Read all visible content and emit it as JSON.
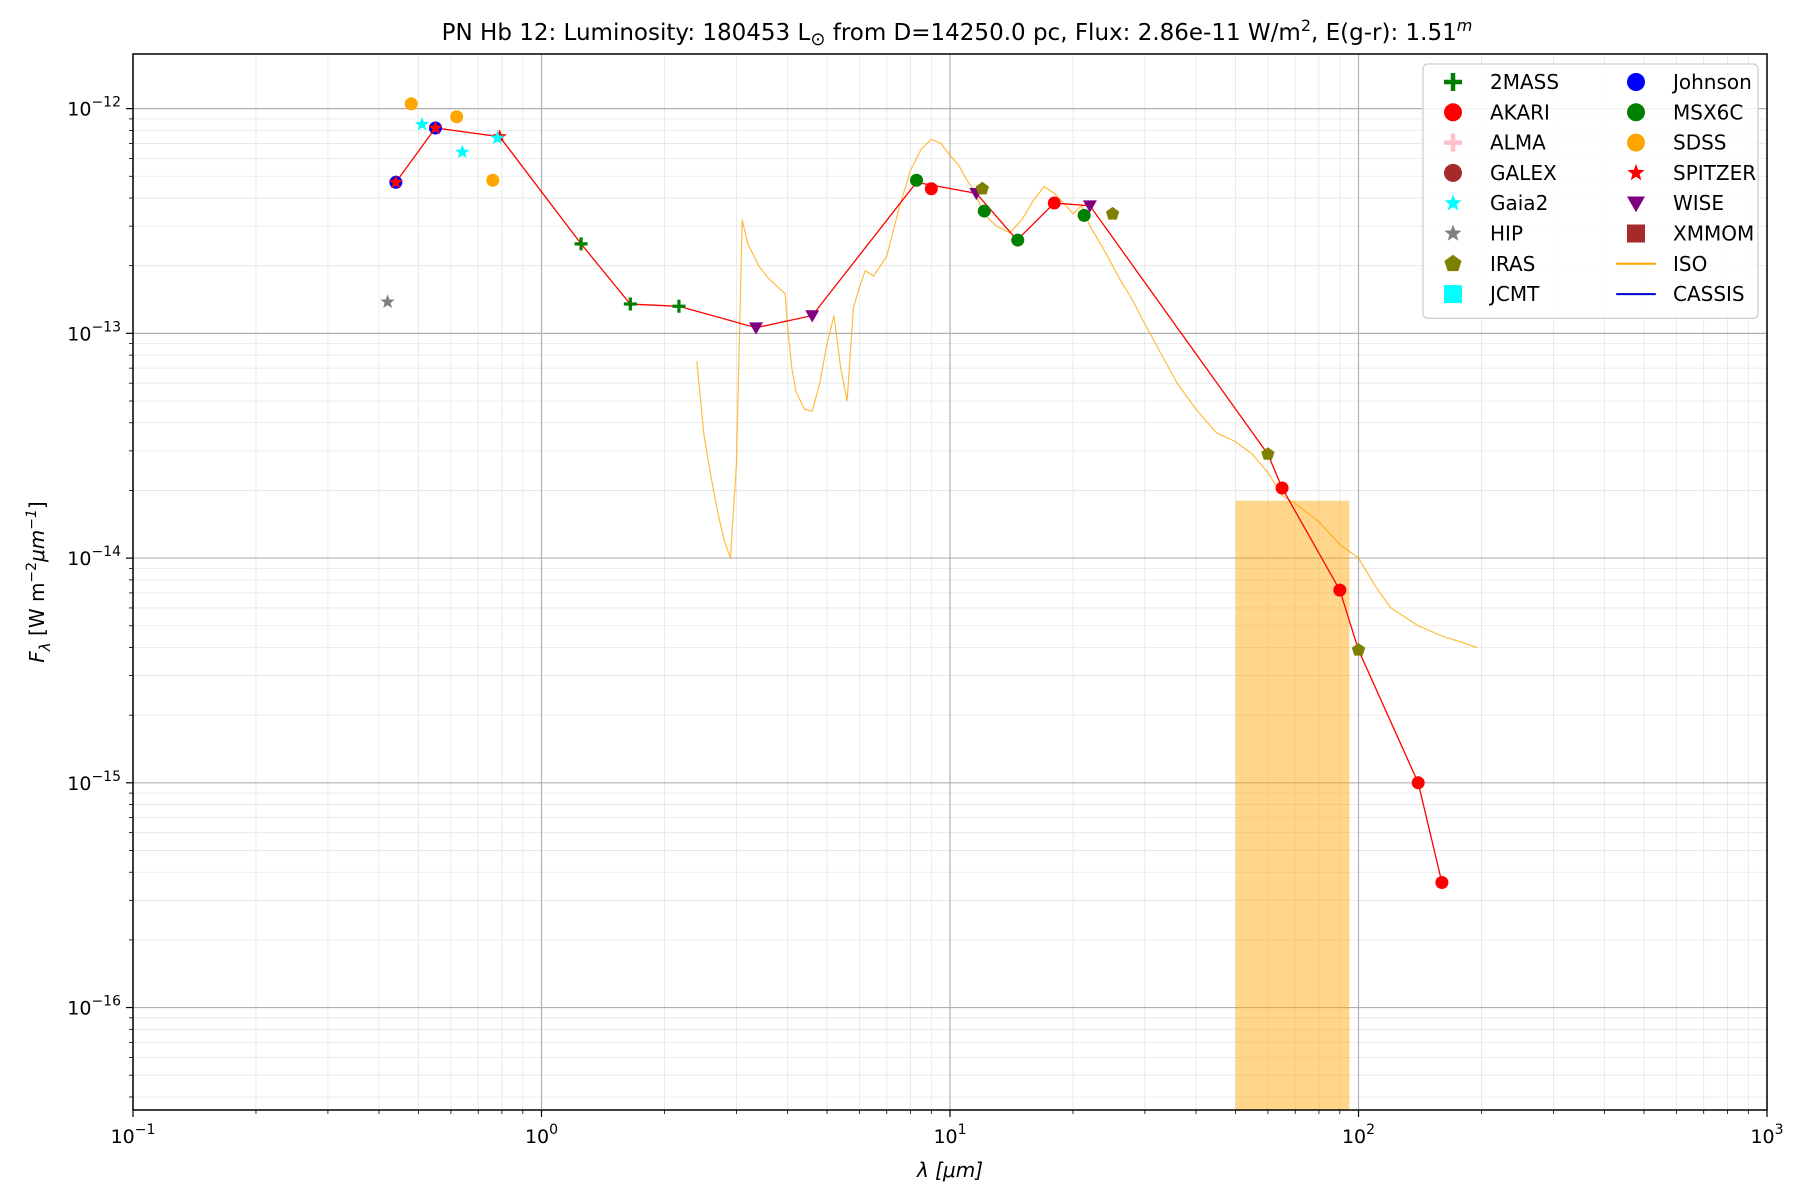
{
  "chart_data": {
    "type": "scatter",
    "title": {
      "prefix": "PN Hb 12:  Luminosity: 180453 L",
      "sun_symbol": "⊙",
      "middle": " from D=14250.0 pc, Flux: 2.86e-11 W/m",
      "flux_exp": "2",
      "ext": ", E(g-r): 1.51",
      "ext_sup": "m"
    },
    "xlabel": "λ [μm]",
    "ylabel": "F_λ [W m^-2 μm^-1]",
    "xlim": [
      0.1,
      1000
    ],
    "ylim": [
      3.5e-17,
      1.75e-12
    ],
    "xscale": "log",
    "yscale": "log",
    "grid": true,
    "legend_position": "top-right",
    "x_ticks": [
      {
        "value": 0.1,
        "base": "10",
        "exp": "−1"
      },
      {
        "value": 1,
        "base": "10",
        "exp": "0"
      },
      {
        "value": 10,
        "base": "10",
        "exp": "1"
      },
      {
        "value": 100,
        "base": "10",
        "exp": "2"
      },
      {
        "value": 1000,
        "base": "10",
        "exp": "3"
      }
    ],
    "y_ticks": [
      {
        "value": 1e-12,
        "base": "10",
        "exp": "−12"
      },
      {
        "value": 1e-13,
        "base": "10",
        "exp": "−13"
      },
      {
        "value": 1e-14,
        "base": "10",
        "exp": "−14"
      },
      {
        "value": 1e-15,
        "base": "10",
        "exp": "−15"
      },
      {
        "value": 1e-16,
        "base": "10",
        "exp": "−16"
      }
    ],
    "legend": [
      {
        "name": "2MASS",
        "marker": "plus",
        "color": "#008000"
      },
      {
        "name": "Johnson",
        "marker": "circle",
        "color": "#0000ff"
      },
      {
        "name": "AKARI",
        "marker": "circle",
        "color": "#ff0000"
      },
      {
        "name": "MSX6C",
        "marker": "circle",
        "color": "#008000"
      },
      {
        "name": "ALMA",
        "marker": "plus",
        "color": "#ffc0cb"
      },
      {
        "name": "SDSS",
        "marker": "circle",
        "color": "#ffa500"
      },
      {
        "name": "GALEX",
        "marker": "circle",
        "color": "#a52a2a"
      },
      {
        "name": "SPITZER",
        "marker": "star",
        "color": "#ff0000"
      },
      {
        "name": "Gaia2",
        "marker": "star",
        "color": "#00ffff"
      },
      {
        "name": "WISE",
        "marker": "triangle",
        "color": "#800080"
      },
      {
        "name": "HIP",
        "marker": "star",
        "color": "#808080"
      },
      {
        "name": "XMMOM",
        "marker": "square",
        "color": "#a52a2a"
      },
      {
        "name": "IRAS",
        "marker": "pentagon",
        "color": "#808000"
      },
      {
        "name": "ISO",
        "marker": "line",
        "color": "#ffa500"
      },
      {
        "name": "JCMT",
        "marker": "square",
        "color": "#00ffff"
      },
      {
        "name": "CASSIS",
        "marker": "line",
        "color": "#0000cd"
      }
    ],
    "sed_line": {
      "color": "#ff0000",
      "x": [
        0.44,
        0.55,
        0.79,
        1.25,
        1.65,
        2.17,
        3.35,
        4.6,
        8.28,
        11.6,
        14.6,
        18,
        22,
        60,
        65,
        90,
        100,
        140,
        160
      ],
      "y": [
        4.7e-13,
        8.2e-13,
        7.5e-13,
        2.5e-13,
        1.35e-13,
        1.32e-13,
        1.06e-13,
        1.2e-13,
        4.7e-13,
        4.2e-13,
        2.6e-13,
        3.8e-13,
        3.7e-13,
        2.9e-14,
        2.05e-14,
        7.2e-15,
        3.9e-15,
        1e-15,
        3.6e-16
      ]
    },
    "series": [
      {
        "name": "2MASS",
        "marker": "plus",
        "color": "#008000",
        "x": [
          1.25,
          1.65,
          2.17
        ],
        "y": [
          2.5e-13,
          1.35e-13,
          1.32e-13
        ]
      },
      {
        "name": "Johnson",
        "marker": "circle",
        "color": "#0000ff",
        "x": [
          0.44,
          0.55
        ],
        "y": [
          4.7e-13,
          8.2e-13
        ]
      },
      {
        "name": "AKARI",
        "marker": "circle",
        "color": "#ff0000",
        "x": [
          9,
          18,
          65,
          90,
          140,
          160
        ],
        "y": [
          4.4e-13,
          3.8e-13,
          2.05e-14,
          7.2e-15,
          1e-15,
          3.6e-16
        ]
      },
      {
        "name": "MSX6C",
        "marker": "circle",
        "color": "#008000",
        "x": [
          8.28,
          12.13,
          14.65,
          21.3
        ],
        "y": [
          4.8e-13,
          3.5e-13,
          2.6e-13,
          3.35e-13
        ]
      },
      {
        "name": "SDSS",
        "marker": "circle",
        "color": "#ffa500",
        "x": [
          0.48,
          0.62,
          0.76
        ],
        "y": [
          1.05e-12,
          9.2e-13,
          4.8e-13
        ]
      },
      {
        "name": "SPITZER",
        "marker": "star",
        "color": "#ff0000",
        "x": [
          0.44,
          0.55,
          0.79
        ],
        "y": [
          4.7e-13,
          8.2e-13,
          7.5e-13
        ]
      },
      {
        "name": "Gaia2",
        "marker": "star",
        "color": "#00ffff",
        "x": [
          0.51,
          0.64,
          0.78
        ],
        "y": [
          8.5e-13,
          6.4e-13,
          7.4e-13
        ]
      },
      {
        "name": "WISE",
        "marker": "triangle",
        "color": "#800080",
        "x": [
          3.35,
          4.6,
          11.6,
          22
        ],
        "y": [
          1.06e-13,
          1.2e-13,
          4.2e-13,
          3.7e-13
        ]
      },
      {
        "name": "HIP",
        "marker": "star",
        "color": "#808080",
        "x": [
          0.42
        ],
        "y": [
          1.38e-13
        ]
      },
      {
        "name": "IRAS",
        "marker": "pentagon",
        "color": "#808000",
        "x": [
          12,
          25,
          60,
          100
        ],
        "y": [
          4.4e-13,
          3.4e-13,
          2.9e-14,
          3.9e-15
        ]
      }
    ],
    "iso_spectrum": {
      "name": "ISO",
      "color": "#ffa500",
      "x": [
        2.4,
        2.5,
        2.6,
        2.7,
        2.8,
        2.9,
        3.0,
        3.1,
        3.2,
        3.4,
        3.6,
        3.8,
        3.95,
        4.0,
        4.1,
        4.2,
        4.4,
        4.6,
        4.8,
        5.0,
        5.2,
        5.4,
        5.6,
        5.8,
        6.0,
        6.2,
        6.5,
        7.0,
        7.5,
        8.0,
        8.5,
        9.0,
        9.5,
        10.0,
        10.5,
        11.0,
        11.5,
        12.0,
        12.5,
        13.0,
        14.0,
        15.0,
        16.0,
        17.0,
        18.0,
        19.0,
        20.0,
        21.0,
        22.0,
        24.0,
        26.0,
        28.0,
        30.0,
        33.0,
        36.0,
        40.0,
        45.0,
        50.0,
        55.0,
        60.0,
        65.0,
        70.0,
        80.0,
        90.0,
        100.0,
        110.0,
        120.0,
        140.0,
        160.0,
        180.0,
        195.0
      ],
      "y": [
        7.5e-14,
        3.5e-14,
        2.3e-14,
        1.6e-14,
        1.2e-14,
        1e-14,
        2.6e-14,
        3.2e-13,
        2.5e-13,
        2e-13,
        1.75e-13,
        1.6e-13,
        1.5e-13,
        1.1e-13,
        7e-14,
        5.5e-14,
        4.6e-14,
        4.5e-14,
        6e-14,
        9e-14,
        1.2e-13,
        7e-14,
        5e-14,
        1.3e-13,
        1.6e-13,
        1.9e-13,
        1.8e-13,
        2.2e-13,
        3.6e-13,
        5.3e-13,
        6.6e-13,
        7.3e-13,
        7e-13,
        6.2e-13,
        5.6e-13,
        4.8e-13,
        4.3e-13,
        3.5e-13,
        3.2e-13,
        3e-13,
        2.8e-13,
        3.2e-13,
        3.9e-13,
        4.5e-13,
        4.2e-13,
        3.8e-13,
        3.4e-13,
        3.7e-13,
        3e-13,
        2.3e-13,
        1.75e-13,
        1.4e-13,
        1.1e-13,
        8e-14,
        6e-14,
        4.6e-14,
        3.6e-14,
        3.3e-14,
        2.9e-14,
        2.4e-14,
        1.9e-14,
        1.75e-14,
        1.45e-14,
        1.15e-14,
        1e-14,
        7.5e-15,
        6e-15,
        5e-15,
        4.5e-15,
        4.2e-15,
        4e-15
      ],
      "noisy_band": {
        "x_start": 44,
        "x_end": 95,
        "y_low": 3.5e-17,
        "y_high": 1.8e-14
      }
    }
  }
}
